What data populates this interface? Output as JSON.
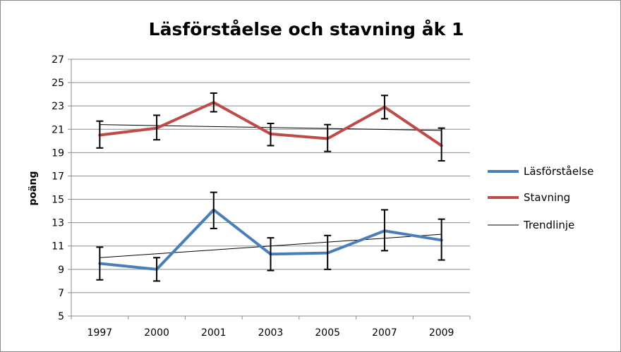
{
  "chart_data": {
    "type": "line",
    "title": "Läsförståelse och stavning åk 1",
    "xlabel": "",
    "ylabel": "poäng",
    "categories": [
      "1997",
      "2000",
      "2001",
      "2003",
      "2005",
      "2007",
      "2009"
    ],
    "ylim": [
      5,
      27
    ],
    "yticks": [
      5,
      7,
      9,
      11,
      13,
      15,
      17,
      19,
      21,
      23,
      25,
      27
    ],
    "grid": true,
    "legend_position": "right",
    "series": [
      {
        "name": "Läsförståelse",
        "color": "#4a7ebb",
        "values": [
          9.5,
          9.0,
          14.1,
          10.3,
          10.4,
          12.3,
          11.5
        ],
        "error_low": [
          8.1,
          8.0,
          12.5,
          8.9,
          9.0,
          10.6,
          9.8
        ],
        "error_high": [
          10.9,
          10.0,
          15.6,
          11.7,
          11.9,
          14.1,
          13.3
        ]
      },
      {
        "name": "Stavning",
        "color": "#be4b48",
        "values": [
          20.5,
          21.1,
          23.3,
          20.6,
          20.2,
          22.9,
          19.6
        ],
        "error_low": [
          19.4,
          20.1,
          22.5,
          19.6,
          19.1,
          21.9,
          18.3
        ],
        "error_high": [
          21.7,
          22.2,
          24.1,
          21.5,
          21.4,
          23.9,
          21.1
        ]
      }
    ],
    "trendlines": [
      {
        "name": "Trendlinje",
        "color": "#000000",
        "from": 21.4,
        "to": 20.9
      },
      {
        "name": "",
        "color": "#000000",
        "from": 10.0,
        "to": 12.0
      }
    ],
    "legend": [
      {
        "label": "Läsförståelse",
        "color": "#4a7ebb",
        "width": 4
      },
      {
        "label": "Stavning",
        "color": "#be4b48",
        "width": 4
      },
      {
        "label": "Trendlinje",
        "color": "#000000",
        "width": 1
      }
    ]
  }
}
